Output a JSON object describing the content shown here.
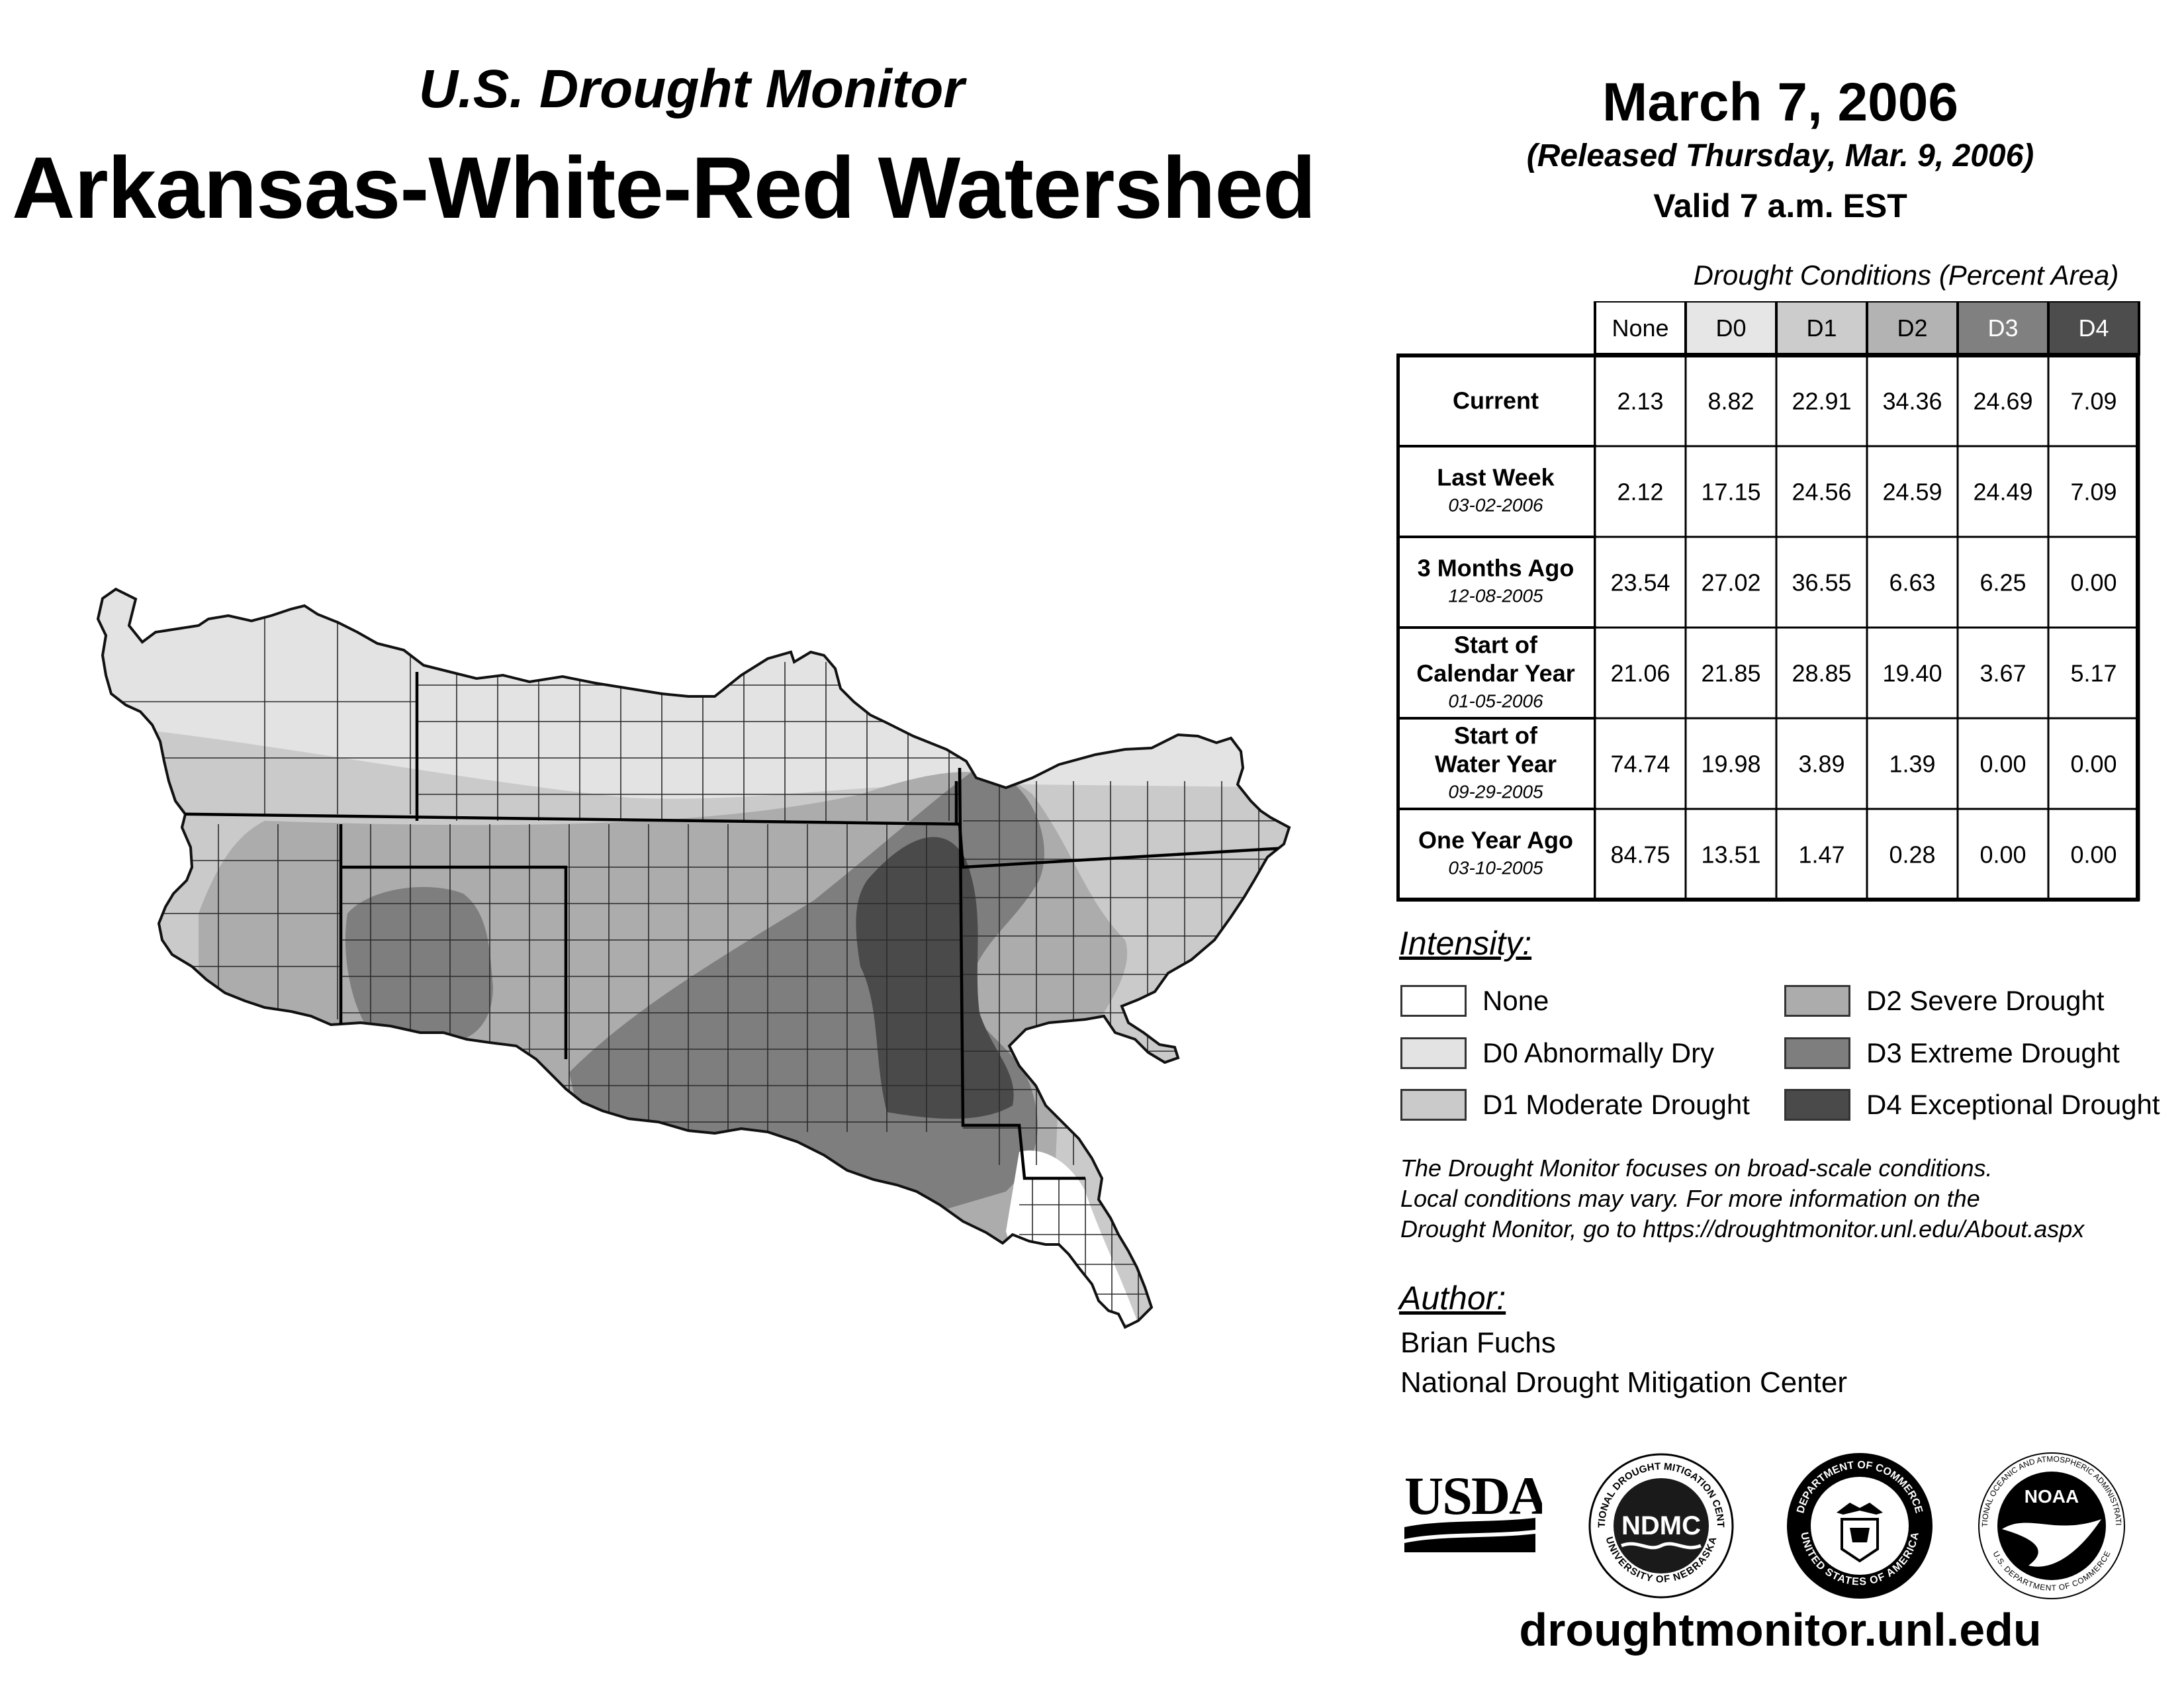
{
  "header": {
    "subtitle": "U.S. Drought Monitor",
    "title": "Arkansas-White-Red Watershed",
    "date": "March 7, 2006",
    "released": "(Released Thursday, Mar. 9, 2006)",
    "valid": "Valid 7 a.m. EST"
  },
  "conditions_table": {
    "caption": "Drought Conditions (Percent Area)",
    "columns": [
      "None",
      "D0",
      "D1",
      "D2",
      "D3",
      "D4"
    ],
    "column_colors": [
      "#ffffff",
      "#e6e6e6",
      "#cccccc",
      "#b3b3b3",
      "#808080",
      "#4d4d4d"
    ],
    "rows": [
      {
        "label": "Current",
        "date": "",
        "values": [
          "2.13",
          "8.82",
          "22.91",
          "34.36",
          "24.69",
          "7.09"
        ]
      },
      {
        "label": "Last Week",
        "date": "03-02-2006",
        "values": [
          "2.12",
          "17.15",
          "24.56",
          "24.59",
          "24.49",
          "7.09"
        ]
      },
      {
        "label": "3 Months Ago",
        "date": "12-08-2005",
        "values": [
          "23.54",
          "27.02",
          "36.55",
          "6.63",
          "6.25",
          "0.00"
        ]
      },
      {
        "label": "Start of Calendar Year",
        "date": "01-05-2006",
        "values": [
          "21.06",
          "21.85",
          "28.85",
          "19.40",
          "3.67",
          "5.17"
        ]
      },
      {
        "label": "Start of Water Year",
        "date": "09-29-2005",
        "values": [
          "74.74",
          "19.98",
          "3.89",
          "1.39",
          "0.00",
          "0.00"
        ]
      },
      {
        "label": "One Year Ago",
        "date": "03-10-2005",
        "values": [
          "84.75",
          "13.51",
          "1.47",
          "0.28",
          "0.00",
          "0.00"
        ]
      }
    ]
  },
  "intensity": {
    "heading": "Intensity:",
    "items": [
      {
        "label": "None",
        "color": "#ffffff"
      },
      {
        "label": "D0 Abnormally Dry",
        "color": "#e3e3e3"
      },
      {
        "label": "D1 Moderate Drought",
        "color": "#cacaca"
      },
      {
        "label": "D2 Severe Drought",
        "color": "#acacac"
      },
      {
        "label": "D3 Extreme Drought",
        "color": "#7e7e7e"
      },
      {
        "label": "D4 Exceptional Drought",
        "color": "#4a4a4a"
      }
    ]
  },
  "disclaimer": [
    "The Drought Monitor focuses on broad-scale conditions.",
    "Local conditions may vary. For more information on the",
    "Drought Monitor, go to https://droughtmonitor.unl.edu/About.aspx"
  ],
  "author": {
    "heading": "Author:",
    "name": "Brian Fuchs",
    "organization": "National Drought Mitigation Center"
  },
  "logos": {
    "usda": "USDA",
    "ndmc": "NDMC",
    "ndmc_ring_top": "NATIONAL DROUGHT MITIGATION CENTER",
    "ndmc_ring_bottom": "UNIVERSITY OF NEBRASKA",
    "doc_ring_top": "DEPARTMENT OF COMMERCE",
    "doc_ring_bottom": "UNITED STATES OF AMERICA",
    "noaa": "NOAA",
    "noaa_ring_top": "NATIONAL OCEANIC AND ATMOSPHERIC ADMINISTRATION",
    "noaa_ring_bottom": "U.S. DEPARTMENT OF COMMERCE"
  },
  "website": "droughtmonitor.unl.edu"
}
